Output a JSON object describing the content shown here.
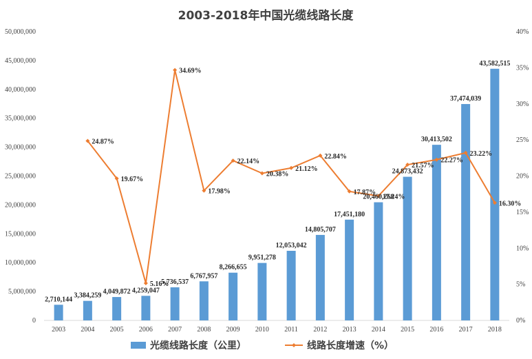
{
  "chart_data": {
    "type": "bar+line",
    "title": "2003-2018年中国光缆线路长度",
    "categories": [
      "2003",
      "2004",
      "2005",
      "2006",
      "2007",
      "2008",
      "2009",
      "2010",
      "2011",
      "2012",
      "2013",
      "2014",
      "2015",
      "2016",
      "2017",
      "2018"
    ],
    "series": [
      {
        "name": "光缆线路长度（公里）",
        "type": "bar",
        "axis": "left",
        "color": "#5b9bd5",
        "values": [
          2710144,
          3384259,
          4049872,
          4259047,
          5736537,
          6767957,
          8266655,
          9951278,
          12053042,
          14805707,
          17451180,
          20460268,
          24873432,
          30413502,
          37474039,
          43582515
        ],
        "labels": [
          "2,710,144",
          "3,384,259",
          "4,049,872",
          "4,259,047",
          "5,736,537",
          "6,767,957",
          "8,266,655",
          "9,951,278",
          "12,053,042",
          "14,805,707",
          "17,451,180",
          "20,460,268",
          "24,873,432",
          "30,413,502",
          "37,474,039",
          "43,582,515"
        ]
      },
      {
        "name": "线路长度增速（%）",
        "type": "line",
        "axis": "right",
        "color": "#ed7d31",
        "values": [
          null,
          24.87,
          19.67,
          5.16,
          34.69,
          17.98,
          22.14,
          20.38,
          21.12,
          22.84,
          17.87,
          17.24,
          21.57,
          22.27,
          23.22,
          16.3
        ],
        "labels": [
          "",
          "24.87%",
          "19.67%",
          "5.16%",
          "34.69%",
          "17.98%",
          "22.14%",
          "20.38%",
          "21.12%",
          "22.84%",
          "17.87%",
          "17.24%",
          "21.57%",
          "22.27%",
          "23.22%",
          "16.30%"
        ]
      }
    ],
    "y_left": {
      "min": 0,
      "max": 50000000,
      "ticks": [
        0,
        5000000,
        10000000,
        15000000,
        20000000,
        25000000,
        30000000,
        35000000,
        40000000,
        45000000,
        50000000
      ],
      "tick_labels": [
        "0",
        "5,000,000",
        "10,000,000",
        "15,000,000",
        "20,000,000",
        "25,000,000",
        "30,000,000",
        "35,000,000",
        "40,000,000",
        "45,000,000",
        "50,000,000"
      ]
    },
    "y_right": {
      "min": 0,
      "max": 40,
      "ticks": [
        0,
        5,
        10,
        15,
        20,
        25,
        30,
        35,
        40
      ],
      "tick_labels": [
        "0%",
        "5%",
        "10%",
        "15%",
        "20%",
        "25%",
        "30%",
        "35%",
        "40%"
      ]
    },
    "grid": false,
    "legend_position": "bottom"
  }
}
